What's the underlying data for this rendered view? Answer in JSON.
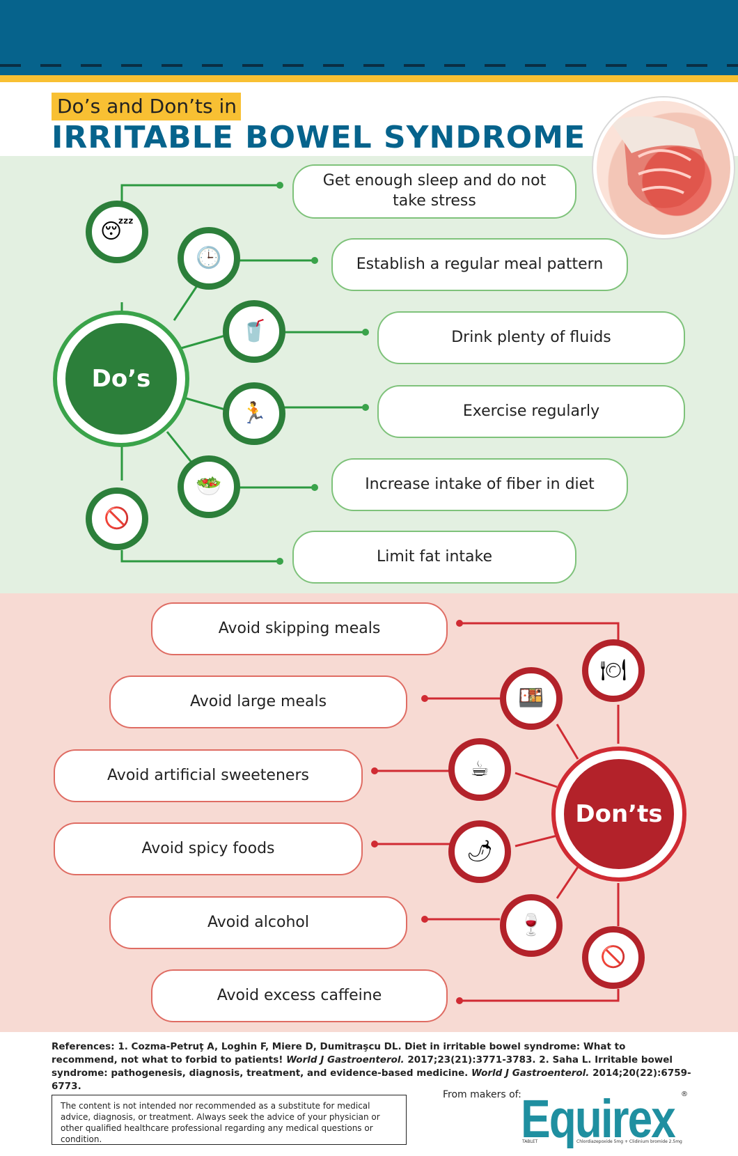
{
  "header": {
    "title_prefix": "Do’s and Don’ts in",
    "title_main": "IRRITABLE BOWEL SYNDROME"
  },
  "colors": {
    "header_blue": "#06638c",
    "accent_yellow": "#f8c033",
    "dos_green": "#2c7f3a",
    "donts_red": "#b3222a"
  },
  "dos": {
    "hub_label": "Do’s",
    "items": [
      {
        "label": "Get enough sleep and do not take stress",
        "icon": "sleep-icon"
      },
      {
        "label": "Establish a regular meal pattern",
        "icon": "clock-meal-icon"
      },
      {
        "label": "Drink plenty of fluids",
        "icon": "drinking-water-icon"
      },
      {
        "label": "Exercise regularly",
        "icon": "exercise-icon"
      },
      {
        "label": "Increase intake of fiber in diet",
        "icon": "fiber-food-icon"
      },
      {
        "label": "Limit fat intake",
        "icon": "no-fatty-food-icon"
      }
    ]
  },
  "donts": {
    "hub_label": "Don’ts",
    "items": [
      {
        "label": "Avoid skipping meals",
        "icon": "plate-meal-icon"
      },
      {
        "label": "Avoid large meals",
        "icon": "large-meal-icon"
      },
      {
        "label": "Avoid artificial sweeteners",
        "icon": "sweetener-icon"
      },
      {
        "label": "Avoid spicy foods",
        "icon": "spicy-food-icon"
      },
      {
        "label": "Avoid alcohol",
        "icon": "no-alcohol-icon"
      },
      {
        "label": "Avoid excess caffeine",
        "icon": "no-caffeine-icon"
      }
    ]
  },
  "footer": {
    "references_title": "References:",
    "ref1_num": "1.",
    "ref1_text": "Cozma-Petruţ A, Loghin F, Miere D, Dumitraşcu DL. Diet in irritable bowel syndrome: What to recommend, not what to forbid to patients!",
    "ref1_journal": "World J Gastroenterol.",
    "ref1_cite": "2017;23(21):3771-3783.",
    "ref2_num": "2.",
    "ref2_text": "Saha L. Irritable bowel syndrome: pathogenesis, diagnosis, treatment, and evidence-based medicine.",
    "ref2_journal": "World J Gastroenterol.",
    "ref2_cite": "2014;20(22):6759-6773.",
    "disclaimer": "The content is not intended nor recommended as a substitute for medical advice, diagnosis, or treatment. Always seek the advice of your physician or other qualified healthcare professional regarding any medical questions or condition.",
    "from_label": "From makers of:",
    "brand": "Equirex",
    "brand_form": "TABLET",
    "brand_composition": "Chlordiazepoxide 5mg + Clidinium bromide 2.5mg",
    "registered": "®"
  }
}
